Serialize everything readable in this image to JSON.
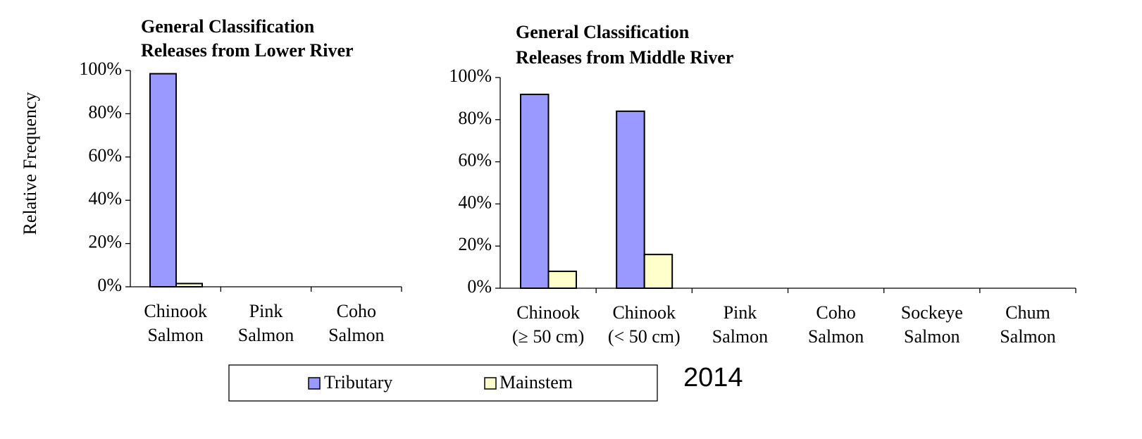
{
  "chart_data": [
    {
      "type": "bar",
      "title": [
        "General  Classification",
        "Releases from  Lower River"
      ],
      "ylabel": "Relative  Frequency",
      "categories": [
        "Chinook Salmon",
        "Pink Salmon",
        "Coho Salmon"
      ],
      "series": [
        {
          "name": "Tributary",
          "color": "#9999ff",
          "values": [
            98.5,
            0,
            0
          ]
        },
        {
          "name": "Mainstem",
          "color": "#ffffcc",
          "values": [
            1.5,
            0,
            0
          ]
        }
      ],
      "ylim": [
        0,
        100
      ],
      "yticks": [
        {
          "value": 0,
          "label": "0%"
        },
        {
          "value": 20,
          "label": "20%"
        },
        {
          "value": 40,
          "label": "40%"
        },
        {
          "value": 60,
          "label": "60%"
        },
        {
          "value": 80,
          "label": "80%"
        },
        {
          "value": 100,
          "label": "100%"
        }
      ]
    },
    {
      "type": "bar",
      "title": [
        "General Classification",
        "Releases from Middle River"
      ],
      "categories": [
        "Chinook (≥ 50 cm)",
        "Chinook (< 50 cm)",
        "Pink Salmon",
        "Coho Salmon",
        "Sockeye Salmon",
        "Chum Salmon"
      ],
      "series": [
        {
          "name": "Tributary",
          "color": "#9999ff",
          "values": [
            92,
            84,
            0,
            0,
            0,
            0
          ]
        },
        {
          "name": "Mainstem",
          "color": "#ffffcc",
          "values": [
            8,
            16,
            0,
            0,
            0,
            0
          ]
        }
      ],
      "ylim": [
        0,
        100
      ],
      "yticks": [
        {
          "value": 0,
          "label": "0%"
        },
        {
          "value": 20,
          "label": "20%"
        },
        {
          "value": 40,
          "label": "40%"
        },
        {
          "value": 60,
          "label": "60%"
        },
        {
          "value": 80,
          "label": "80%"
        },
        {
          "value": 100,
          "label": "100%"
        }
      ],
      "annotation": "2014"
    }
  ]
}
